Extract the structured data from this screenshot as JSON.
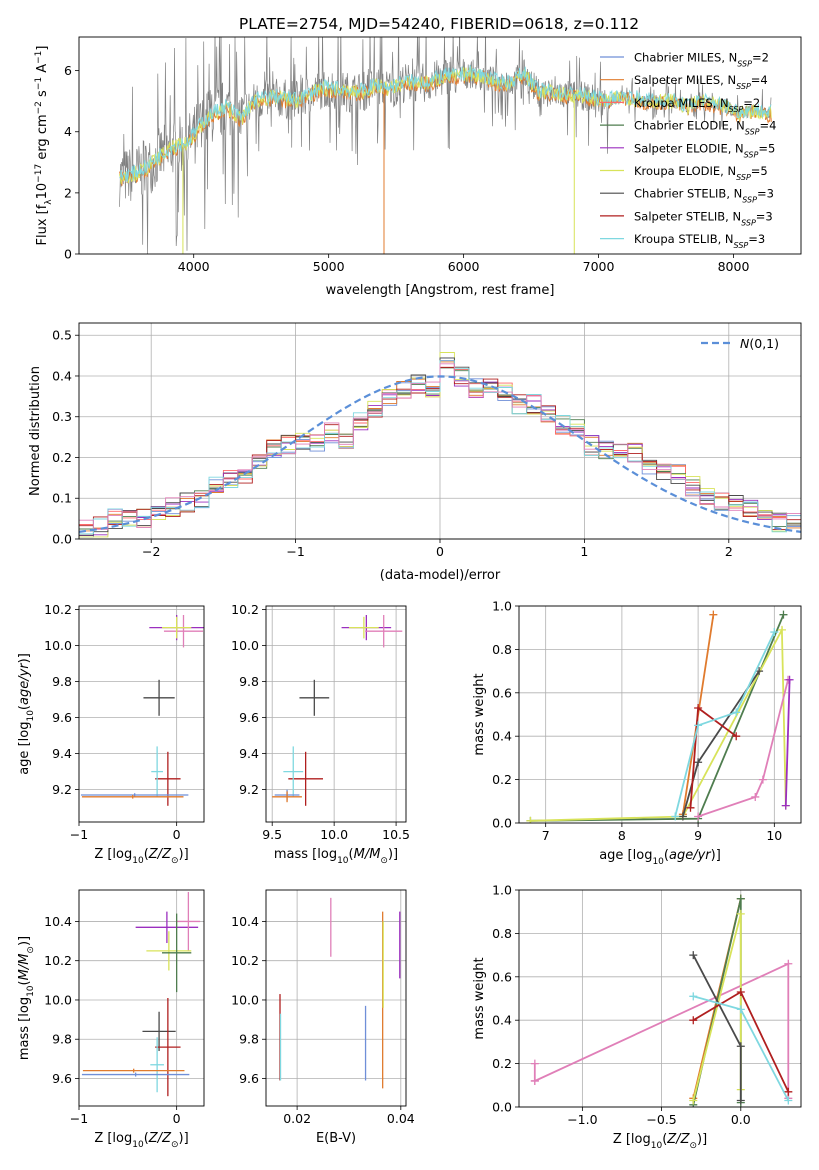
{
  "title": "PLATE=2754, MJD=54240, FIBERID=0618, z=0.112",
  "colors": {
    "Chabrier MILES": "#6f8fd8",
    "Salpeter MILES": "#e07b2e",
    "Kroupa MILES": "#ff6a6a",
    "Chabrier ELODIE": "#4f7d4f",
    "Salpeter ELODIE": "#9b2fbf",
    "Kroupa ELODIE": "#d8e35a",
    "Chabrier STELIB": "#4a4a4a",
    "Salpeter STELIB": "#b01f1f",
    "Kroupa STELIB": "#7fd8e0",
    "extra": "#e07fb8",
    "gauss": "#5b8fd8",
    "grid": "#b0b0b0",
    "data": "#808080"
  },
  "chart_data": [
    {
      "type": "line",
      "id": "spectrum",
      "xlabel": "wavelength [Angstrom, rest frame]",
      "ylabel": "Flux [f",
      "xlim": [
        3150,
        8500
      ],
      "ylim": [
        0,
        7.1
      ],
      "xticks": [
        4000,
        5000,
        6000,
        7000,
        8000
      ],
      "yticks": [
        0,
        2,
        4,
        6
      ],
      "grid": false,
      "legend_position": "right",
      "legend": [
        {
          "label": "Chabrier MILES, N",
          "sub": "SSP",
          "eq": "=2",
          "color_key": "Chabrier MILES"
        },
        {
          "label": "Salpeter MILES, N",
          "sub": "SSP",
          "eq": "=4",
          "color_key": "Salpeter MILES"
        },
        {
          "label": "Kroupa MILES, N",
          "sub": "SSP",
          "eq": "=2",
          "color_key": "Kroupa MILES"
        },
        {
          "label": "Chabrier ELODIE, N",
          "sub": "SSP",
          "eq": "=4",
          "color_key": "Chabrier ELODIE"
        },
        {
          "label": "Salpeter ELODIE, N",
          "sub": "SSP",
          "eq": "=5",
          "color_key": "Salpeter ELODIE"
        },
        {
          "label": "Kroupa ELODIE, N",
          "sub": "SSP",
          "eq": "=5",
          "color_key": "Kroupa ELODIE"
        },
        {
          "label": "Chabrier STELIB, N",
          "sub": "SSP",
          "eq": "=3",
          "color_key": "Chabrier STELIB"
        },
        {
          "label": "Salpeter STELIB, N",
          "sub": "SSP",
          "eq": "=3",
          "color_key": "Salpeter STELIB"
        },
        {
          "label": "Kroupa STELIB, N",
          "sub": "SSP",
          "eq": "=3",
          "color_key": "Kroupa STELIB"
        }
      ],
      "model_curve": {
        "x": [
          3450,
          3550,
          3650,
          3750,
          3850,
          3950,
          4050,
          4150,
          4250,
          4350,
          4450,
          4550,
          4650,
          4750,
          4850,
          4950,
          5050,
          5150,
          5250,
          5350,
          5450,
          5550,
          5650,
          5750,
          5850,
          5950,
          6050,
          6150,
          6250,
          6350,
          6450,
          6550,
          6650,
          6750,
          6850,
          6950,
          7050,
          7150,
          7250,
          7350,
          7450,
          7550,
          7650,
          7750,
          7850,
          7950,
          8050,
          8150,
          8250
        ],
        "y": [
          2.5,
          2.6,
          2.8,
          3.2,
          3.5,
          3.6,
          4.2,
          4.6,
          4.8,
          4.4,
          5.0,
          5.1,
          5.1,
          5.0,
          5.2,
          5.4,
          5.4,
          5.3,
          5.3,
          5.5,
          5.4,
          5.6,
          5.6,
          5.6,
          5.8,
          5.8,
          5.9,
          5.8,
          5.6,
          5.6,
          5.9,
          5.3,
          5.3,
          5.2,
          5.2,
          5.1,
          5.0,
          5.1,
          5.1,
          5.0,
          5.0,
          5.0,
          4.8,
          5.0,
          4.9,
          4.8,
          4.6,
          4.7,
          4.6
        ]
      }
    },
    {
      "type": "line",
      "id": "residual",
      "xlabel": "(data-model)/error",
      "ylabel": "Normed distribution",
      "xlim": [
        -2.5,
        2.5
      ],
      "ylim": [
        0,
        0.53
      ],
      "xticks": [
        -2,
        -1,
        0,
        1,
        2
      ],
      "yticks": [
        0.0,
        0.1,
        0.2,
        0.3,
        0.4,
        0.5
      ],
      "grid": true,
      "legend_position": "top-right",
      "legend": [
        {
          "label": "N(0,1)"
        }
      ],
      "bins": [
        -2.5,
        -2.4,
        -2.3,
        -2.2,
        -2.1,
        -2.0,
        -1.9,
        -1.8,
        -1.7,
        -1.6,
        -1.5,
        -1.4,
        -1.3,
        -1.2,
        -1.1,
        -1.0,
        -0.9,
        -0.8,
        -0.7,
        -0.6,
        -0.5,
        -0.4,
        -0.3,
        -0.2,
        -0.1,
        0.0,
        0.1,
        0.2,
        0.3,
        0.4,
        0.5,
        0.6,
        0.7,
        0.8,
        0.9,
        1.0,
        1.1,
        1.2,
        1.3,
        1.4,
        1.5,
        1.6,
        1.7,
        1.8,
        1.9,
        2.0,
        2.1,
        2.2,
        2.3,
        2.4,
        2.5
      ],
      "histogram": [
        0.03,
        0.03,
        0.05,
        0.05,
        0.05,
        0.06,
        0.08,
        0.09,
        0.1,
        0.13,
        0.15,
        0.16,
        0.19,
        0.22,
        0.23,
        0.24,
        0.24,
        0.26,
        0.24,
        0.29,
        0.32,
        0.35,
        0.37,
        0.38,
        0.37,
        0.44,
        0.4,
        0.37,
        0.38,
        0.36,
        0.33,
        0.33,
        0.31,
        0.28,
        0.27,
        0.23,
        0.22,
        0.22,
        0.21,
        0.18,
        0.17,
        0.16,
        0.13,
        0.11,
        0.09,
        0.09,
        0.07,
        0.05,
        0.04,
        0.04
      ]
    },
    {
      "type": "scatter",
      "id": "age-vs-z",
      "xlabel": "Z [log10(Z/Z⊙)]",
      "ylabel": "age [log10(age/yr)]",
      "xlim": [
        -1.0,
        0.28
      ],
      "ylim": [
        9.02,
        10.22
      ],
      "xticks": [
        -1,
        0
      ],
      "yticks": [
        9.2,
        9.4,
        9.6,
        9.8,
        10.0,
        10.2
      ],
      "grid": true,
      "errorbars": [
        {
          "x": 0.0,
          "y": 10.1,
          "xerr": 0.28,
          "yerr": 0.07,
          "color_key": "Salpeter ELODIE"
        },
        {
          "x": 0.07,
          "y": 10.08,
          "xerr": 0.2,
          "yerr": 0.09,
          "color_key": "extra"
        },
        {
          "x": 0.0,
          "y": 10.1,
          "xerr": 0.15,
          "yerr": 0.06,
          "color_key": "Kroupa ELODIE"
        },
        {
          "x": -0.18,
          "y": 9.71,
          "xerr": 0.16,
          "yerr": 0.1,
          "color_key": "Chabrier STELIB"
        },
        {
          "x": -0.09,
          "y": 9.26,
          "xerr": 0.13,
          "yerr": 0.15,
          "color_key": "Salpeter STELIB"
        },
        {
          "x": -0.2,
          "y": 9.3,
          "xerr": 0.06,
          "yerr": 0.14,
          "color_key": "Kroupa STELIB"
        },
        {
          "x": -0.43,
          "y": 9.17,
          "xerr": 0.55,
          "yerr": 0.01,
          "color_key": "Chabrier MILES"
        },
        {
          "x": -0.45,
          "y": 9.16,
          "xerr": 0.52,
          "yerr": 0.01,
          "color_key": "Salpeter MILES"
        }
      ]
    },
    {
      "type": "scatter",
      "id": "age-vs-mass",
      "xlabel": "mass [log10(M/M⊙)]",
      "ylabel": "",
      "xlim": [
        9.45,
        10.58
      ],
      "ylim": [
        9.02,
        10.22
      ],
      "xticks": [
        9.5,
        10.0,
        10.5
      ],
      "yticks": [
        9.2,
        9.4,
        9.6,
        9.8,
        10.0,
        10.2
      ],
      "grid": true,
      "errorbars": [
        {
          "x": 10.26,
          "y": 10.1,
          "xerr": 0.2,
          "yerr": 0.07,
          "color_key": "Salpeter ELODIE"
        },
        {
          "x": 10.4,
          "y": 10.08,
          "xerr": 0.15,
          "yerr": 0.09,
          "color_key": "extra"
        },
        {
          "x": 10.24,
          "y": 10.1,
          "xerr": 0.12,
          "yerr": 0.06,
          "color_key": "Kroupa ELODIE"
        },
        {
          "x": 9.84,
          "y": 9.71,
          "xerr": 0.12,
          "yerr": 0.1,
          "color_key": "Chabrier STELIB"
        },
        {
          "x": 9.77,
          "y": 9.26,
          "xerr": 0.14,
          "yerr": 0.15,
          "color_key": "Salpeter STELIB"
        },
        {
          "x": 9.67,
          "y": 9.3,
          "xerr": 0.08,
          "yerr": 0.14,
          "color_key": "Kroupa STELIB"
        },
        {
          "x": 9.62,
          "y": 9.17,
          "xerr": 0.1,
          "yerr": 0.03,
          "color_key": "Chabrier MILES"
        },
        {
          "x": 9.62,
          "y": 9.16,
          "xerr": 0.12,
          "yerr": 0.03,
          "color_key": "Salpeter MILES"
        }
      ]
    },
    {
      "type": "line",
      "id": "massweight-vs-age",
      "xlabel": "age [log10(age/yr)]",
      "ylabel": "mass weight",
      "xlim": [
        6.65,
        10.35
      ],
      "ylim": [
        0,
        1.0
      ],
      "xticks": [
        7,
        8,
        9,
        10
      ],
      "yticks": [
        0.0,
        0.2,
        0.4,
        0.6,
        0.8,
        1.0
      ],
      "grid": true,
      "series": [
        {
          "color_key": "Salpeter MILES",
          "x": [
            8.8,
            9.2
          ],
          "y": [
            0.04,
            0.96
          ]
        },
        {
          "color_key": "Chabrier ELODIE",
          "x": [
            6.8,
            9.0,
            10.12
          ],
          "y": [
            0.01,
            0.02,
            0.96
          ]
        },
        {
          "color_key": "Kroupa ELODIE",
          "x": [
            6.8,
            8.8,
            10.1,
            10.15
          ],
          "y": [
            0.01,
            0.03,
            0.89,
            0.08
          ]
        },
        {
          "color_key": "Chabrier STELIB",
          "x": [
            8.8,
            9.0,
            9.8
          ],
          "y": [
            0.03,
            0.28,
            0.7
          ]
        },
        {
          "color_key": "Salpeter STELIB",
          "x": [
            8.9,
            9.0,
            9.5
          ],
          "y": [
            0.07,
            0.53,
            0.4
          ]
        },
        {
          "color_key": "Kroupa STELIB",
          "x": [
            8.7,
            9.0,
            9.5,
            10.0
          ],
          "y": [
            0.03,
            0.45,
            0.51,
            0.88
          ]
        },
        {
          "color_key": "extra",
          "x": [
            9.0,
            9.75,
            9.85,
            10.18
          ],
          "y": [
            0.03,
            0.12,
            0.2,
            0.66
          ]
        },
        {
          "color_key": "Salpeter ELODIE",
          "x": [
            10.15,
            10.2
          ],
          "y": [
            0.08,
            0.66
          ]
        }
      ]
    },
    {
      "type": "scatter",
      "id": "mass-vs-z",
      "xlabel": "Z [log10(Z/Z⊙)]",
      "ylabel": "mass [log10(M/M⊙)]",
      "xlim": [
        -1.0,
        0.28
      ],
      "ylim": [
        9.46,
        10.56
      ],
      "xticks": [
        -1,
        0
      ],
      "yticks": [
        9.6,
        9.8,
        10.0,
        10.2,
        10.4
      ],
      "grid": true,
      "errorbars": [
        {
          "x": -0.1,
          "y": 10.37,
          "xerr": 0.32,
          "yerr": 0.08,
          "color_key": "Salpeter ELODIE"
        },
        {
          "x": 0.12,
          "y": 10.4,
          "xerr": 0.12,
          "yerr": 0.15,
          "color_key": "extra"
        },
        {
          "x": -0.08,
          "y": 10.25,
          "xerr": 0.23,
          "yerr": 0.1,
          "color_key": "Kroupa ELODIE"
        },
        {
          "x": 0.0,
          "y": 10.24,
          "xerr": 0.15,
          "yerr": 0.2,
          "color_key": "Chabrier ELODIE"
        },
        {
          "x": -0.18,
          "y": 9.84,
          "xerr": 0.17,
          "yerr": 0.1,
          "color_key": "Chabrier STELIB"
        },
        {
          "x": -0.09,
          "y": 9.76,
          "xerr": 0.13,
          "yerr": 0.25,
          "color_key": "Salpeter STELIB"
        },
        {
          "x": -0.2,
          "y": 9.67,
          "xerr": 0.07,
          "yerr": 0.14,
          "color_key": "Kroupa STELIB"
        },
        {
          "x": -0.42,
          "y": 9.62,
          "xerr": 0.55,
          "yerr": 0.01,
          "color_key": "Chabrier MILES"
        },
        {
          "x": -0.44,
          "y": 9.64,
          "xerr": 0.52,
          "yerr": 0.01,
          "color_key": "Salpeter MILES"
        }
      ]
    },
    {
      "type": "scatter",
      "id": "mass-vs-ebv",
      "xlabel": "E(B-V)",
      "ylabel": "",
      "xlim": [
        0.014,
        0.041
      ],
      "ylim": [
        9.46,
        10.56
      ],
      "xticks": [
        0.02,
        0.04
      ],
      "yticks": [
        9.6,
        9.8,
        10.0,
        10.2,
        10.4
      ],
      "grid": true,
      "errorbars": [
        {
          "x": 0.0167,
          "y": 9.81,
          "xerr": 0,
          "yerr": 0.22,
          "color_key": "Salpeter STELIB"
        },
        {
          "x": 0.0168,
          "y": 9.76,
          "xerr": 0,
          "yerr": 0.17,
          "color_key": "Kroupa STELIB"
        },
        {
          "x": 0.0265,
          "y": 10.37,
          "xerr": 0,
          "yerr": 0.15,
          "color_key": "extra"
        },
        {
          "x": 0.0332,
          "y": 9.78,
          "xerr": 0,
          "yerr": 0.19,
          "color_key": "Chabrier MILES"
        },
        {
          "x": 0.0365,
          "y": 10.0,
          "xerr": 0,
          "yerr": 0.45,
          "color_key": "Salpeter MILES"
        },
        {
          "x": 0.0366,
          "y": 10.18,
          "xerr": 0,
          "yerr": 0.22,
          "color_key": "Kroupa ELODIE"
        },
        {
          "x": 0.0398,
          "y": 10.28,
          "xerr": 0,
          "yerr": 0.17,
          "color_key": "Salpeter ELODIE"
        }
      ]
    },
    {
      "type": "line",
      "id": "massweight-vs-z",
      "xlabel": "Z [log10(Z/Z⊙)]",
      "ylabel": "mass weight",
      "xlim": [
        -1.4,
        0.38
      ],
      "ylim": [
        0,
        1.0
      ],
      "xticks": [
        -1.0,
        -0.5,
        0.0
      ],
      "yticks": [
        0.0,
        0.2,
        0.4,
        0.6,
        0.8,
        1.0
      ],
      "grid": true,
      "series": [
        {
          "color_key": "extra",
          "x": [
            -1.3,
            0.3,
            0.3
          ],
          "y": [
            0.12,
            0.66,
            0.04
          ]
        },
        {
          "color_key": "extra",
          "x": [
            -1.3,
            -1.3
          ],
          "y": [
            0.12,
            0.2
          ]
        },
        {
          "color_key": "Salpeter MILES",
          "x": [
            -0.3,
            0.0
          ],
          "y": [
            0.04,
            0.96
          ]
        },
        {
          "color_key": "Chabrier ELODIE",
          "x": [
            -0.3,
            0.0,
            0.0
          ],
          "y": [
            0.01,
            0.96,
            0.02
          ]
        },
        {
          "color_key": "Kroupa ELODIE",
          "x": [
            -0.3,
            0.0,
            0.0
          ],
          "y": [
            0.03,
            0.89,
            0.08
          ]
        },
        {
          "color_key": "Chabrier STELIB",
          "x": [
            -0.3,
            0.0,
            0.0
          ],
          "y": [
            0.7,
            0.28,
            0.03
          ]
        },
        {
          "color_key": "Salpeter STELIB",
          "x": [
            -0.3,
            0.0,
            0.3
          ],
          "y": [
            0.4,
            0.53,
            0.07
          ]
        },
        {
          "color_key": "Kroupa STELIB",
          "x": [
            -0.3,
            0.0,
            0.3
          ],
          "y": [
            0.51,
            0.45,
            0.03
          ]
        }
      ]
    }
  ]
}
